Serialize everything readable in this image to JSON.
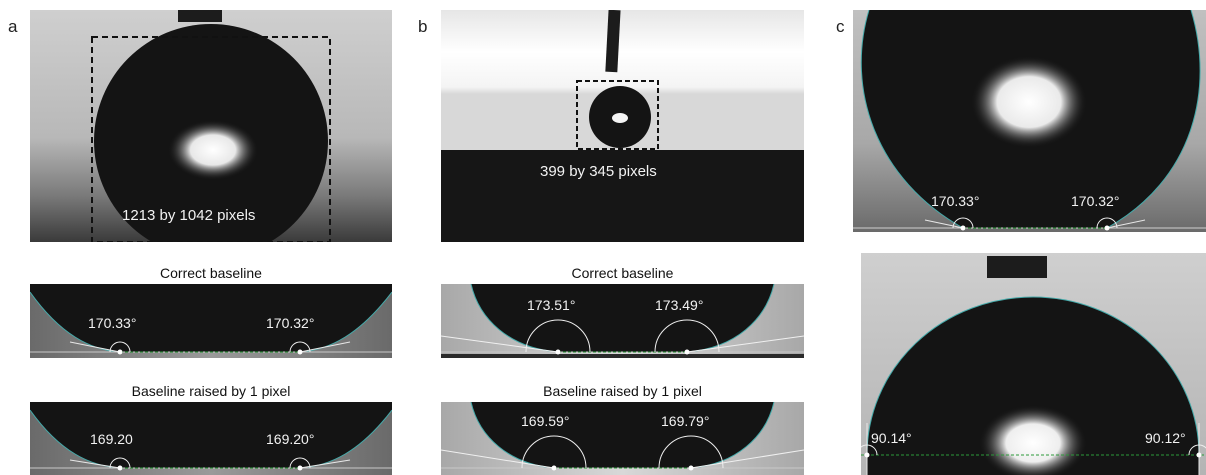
{
  "panels": {
    "a": {
      "letter": "a",
      "top_label": "1213 by 1042 pixels",
      "captions": [
        "Correct baseline",
        "Baseline raised by 1 pixel"
      ],
      "correct_angles": [
        "170.33°",
        "170.32°"
      ],
      "raised_angles": [
        "169.20",
        "169.20°"
      ]
    },
    "b": {
      "letter": "b",
      "top_label": "399 by 345 pixels",
      "captions": [
        "Correct baseline",
        "Baseline raised by 1 pixel"
      ],
      "correct_angles": [
        "173.51°",
        "173.49°"
      ],
      "raised_angles": [
        "169.59°",
        "169.79°"
      ]
    },
    "c": {
      "letter": "c",
      "top_angles": [
        "170.33°",
        "170.32°"
      ],
      "bottom_angles": [
        "90.14°",
        "90.12°"
      ]
    }
  }
}
